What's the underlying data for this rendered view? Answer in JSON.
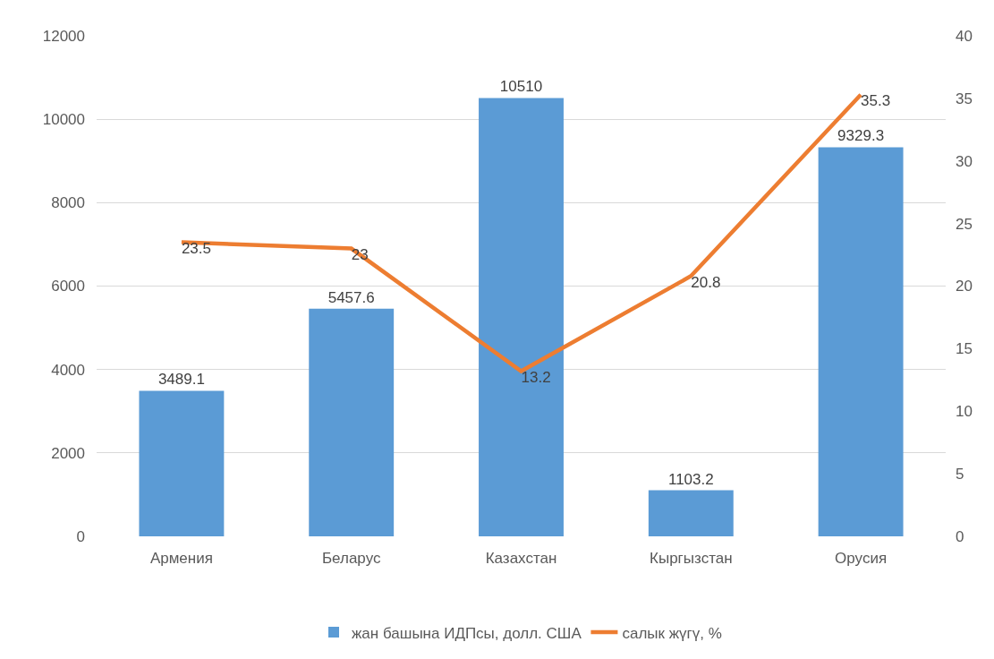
{
  "chart_data": {
    "type": "bar",
    "categories": [
      "Армения",
      "Беларус",
      "Казахстан",
      "Кыргызстан",
      "Орусия"
    ],
    "series": [
      {
        "name": "жан башына ИДПсы, долл. США",
        "color": "#5b9bd5",
        "values": [
          3489.1,
          5457.6,
          10510,
          1103.2,
          9329.3
        ]
      },
      {
        "name": "салык жүгү, %",
        "type": "line",
        "axis": "y2",
        "color": "#ed7d31",
        "values": [
          23.5,
          23,
          13.2,
          20.8,
          35.3
        ]
      }
    ],
    "ylim": [
      0,
      12000
    ],
    "yticks": [
      0,
      2000,
      4000,
      6000,
      8000,
      10000,
      12000
    ],
    "y2lim": [
      0,
      40
    ],
    "y2ticks": [
      0,
      5,
      10,
      15,
      20,
      25,
      30,
      35,
      40
    ],
    "grid": "y",
    "legend": "bottom",
    "data_labels": true
  }
}
